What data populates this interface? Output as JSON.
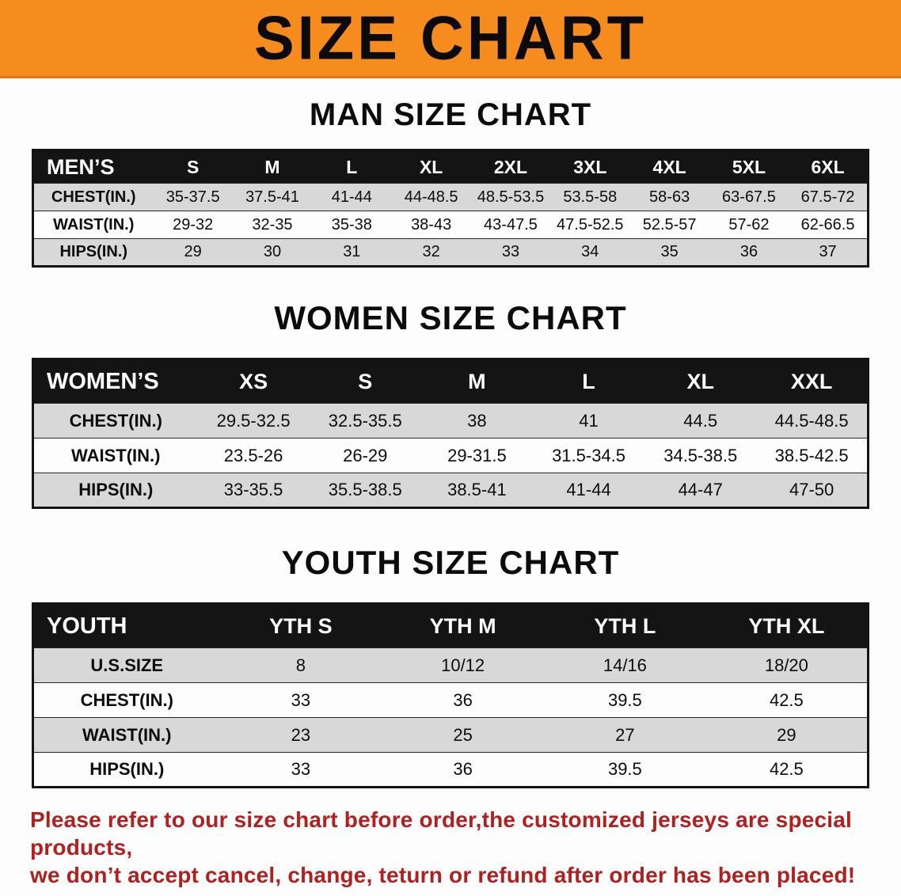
{
  "banner": {
    "title": "SIZE CHART"
  },
  "colors": {
    "banner_bg": "#f68b1e",
    "table_header_bg": "#141414",
    "stripe": "#d8d8d8",
    "note_red": "#b0201f",
    "text": "#0d0d0d"
  },
  "tables": [
    {
      "id": "men",
      "section_title": "MAN SIZE CHART",
      "header": [
        "MEN’S",
        "S",
        "M",
        "L",
        "XL",
        "2XL",
        "3XL",
        "4XL",
        "5XL",
        "6XL"
      ],
      "rows": [
        {
          "label": "CHEST(IN.)",
          "values": [
            "35-37.5",
            "37.5-41",
            "41-44",
            "44-48.5",
            "48.5-53.5",
            "53.5-58",
            "58-63",
            "63-67.5",
            "67.5-72"
          ]
        },
        {
          "label": "WAIST(IN.)",
          "values": [
            "29-32",
            "32-35",
            "35-38",
            "38-43",
            "43-47.5",
            "47.5-52.5",
            "52.5-57",
            "57-62",
            "62-66.5"
          ]
        },
        {
          "label": "HIPS(IN.)",
          "values": [
            "29",
            "30",
            "31",
            "32",
            "33",
            "34",
            "35",
            "36",
            "37"
          ]
        }
      ]
    },
    {
      "id": "women",
      "section_title": "WOMEN SIZE CHART",
      "header": [
        "WOMEN’S",
        "XS",
        "S",
        "M",
        "L",
        "XL",
        "XXL"
      ],
      "rows": [
        {
          "label": "CHEST(IN.)",
          "values": [
            "29.5-32.5",
            "32.5-35.5",
            "38",
            "41",
            "44.5",
            "44.5-48.5"
          ]
        },
        {
          "label": "WAIST(IN.)",
          "values": [
            "23.5-26",
            "26-29",
            "29-31.5",
            "31.5-34.5",
            "34.5-38.5",
            "38.5-42.5"
          ]
        },
        {
          "label": "HIPS(IN.)",
          "values": [
            "33-35.5",
            "35.5-38.5",
            "38.5-41",
            "41-44",
            "44-47",
            "47-50"
          ]
        }
      ]
    },
    {
      "id": "youth",
      "section_title": "YOUTH SIZE CHART",
      "header": [
        "YOUTH",
        "YTH S",
        "YTH M",
        "YTH L",
        "YTH XL"
      ],
      "rows": [
        {
          "label": "U.S.SIZE",
          "values": [
            "8",
            "10/12",
            "14/16",
            "18/20"
          ]
        },
        {
          "label": "CHEST(IN.)",
          "values": [
            "33",
            "36",
            "39.5",
            "42.5"
          ]
        },
        {
          "label": "WAIST(IN.)",
          "values": [
            "23",
            "25",
            "27",
            "29"
          ]
        },
        {
          "label": "HIPS(IN.)",
          "values": [
            "33",
            "36",
            "39.5",
            "42.5"
          ]
        }
      ]
    }
  ],
  "note": {
    "line1": "Please refer to our size chart before order,the customized jerseys are special products,",
    "line2": "we don’t accept cancel, change, teturn or refund after order has been placed!"
  }
}
